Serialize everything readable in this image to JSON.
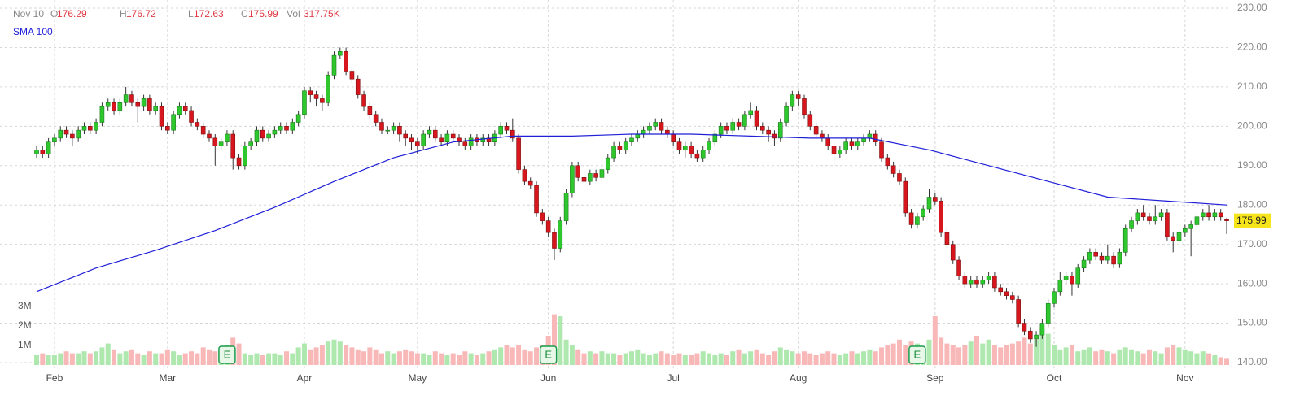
{
  "header": {
    "date": "Nov 10",
    "labels": [
      "O",
      "H",
      "L",
      "C",
      "Vol"
    ],
    "volume_text": "317.75K"
  },
  "chart_data": {
    "type": "candlestick",
    "open": [
      193,
      194,
      193,
      196,
      197,
      199,
      198,
      197,
      199,
      200,
      199,
      201,
      205,
      206,
      204,
      206,
      208,
      206,
      205,
      207,
      204,
      205,
      200,
      199,
      203,
      205,
      204,
      201,
      200,
      198,
      197,
      195,
      196,
      198,
      192,
      190,
      195,
      196,
      199,
      197,
      198,
      199,
      200,
      199,
      201,
      203,
      209,
      208,
      207,
      206,
      213,
      218,
      219,
      214,
      212,
      208,
      205,
      203,
      201,
      199,
      199,
      200,
      198,
      197,
      196,
      195,
      198,
      199,
      197,
      196,
      198,
      197,
      196,
      195,
      197,
      196,
      197,
      196,
      198,
      200,
      199,
      197,
      189,
      186,
      185,
      178,
      176,
      173,
      169,
      176,
      183,
      190,
      187,
      186,
      188,
      187,
      189,
      192,
      195,
      194,
      196,
      197,
      198,
      199,
      200,
      201,
      199,
      198,
      196,
      194,
      195,
      193,
      192,
      194,
      196,
      198,
      200,
      199,
      201,
      200,
      203,
      204,
      200,
      199,
      198,
      197,
      201,
      205,
      208,
      207,
      203,
      200,
      198,
      197,
      195,
      193,
      194,
      196,
      195,
      196,
      197,
      198,
      196,
      192,
      190,
      188,
      186,
      178,
      175,
      177,
      179,
      182,
      181,
      173,
      170,
      166,
      162,
      160,
      161,
      160,
      161,
      162,
      159,
      158,
      157,
      156,
      150,
      148,
      146,
      147,
      150,
      155,
      158,
      161,
      162,
      160,
      164,
      166,
      168,
      167,
      166,
      167,
      165,
      168,
      174,
      176,
      178,
      177,
      176,
      177,
      178,
      172,
      171,
      173,
      174,
      175,
      177,
      178,
      177,
      178,
      176.29
    ],
    "high": [
      195,
      195,
      197,
      198,
      200,
      200,
      199,
      200,
      201,
      201,
      202,
      206,
      207,
      207,
      207,
      210,
      209,
      207,
      208,
      208,
      206,
      206,
      201,
      204,
      206,
      206,
      205,
      202,
      201,
      199,
      198,
      197,
      199,
      199,
      193,
      196,
      197,
      200,
      200,
      199,
      200,
      201,
      201,
      202,
      204,
      210,
      210,
      209,
      208,
      214,
      219,
      220,
      220,
      215,
      213,
      209,
      206,
      204,
      202,
      200,
      201,
      201,
      199,
      198,
      197,
      199,
      200,
      200,
      198,
      199,
      199,
      198,
      197,
      198,
      198,
      198,
      198,
      199,
      201,
      201,
      202,
      198,
      190,
      187,
      186,
      179,
      177,
      174,
      177,
      184,
      191,
      191,
      188,
      189,
      189,
      190,
      193,
      196,
      196,
      197,
      198,
      199,
      200,
      201,
      202,
      202,
      200,
      199,
      197,
      196,
      196,
      194,
      195,
      197,
      199,
      201,
      201,
      202,
      202,
      204,
      206,
      205,
      201,
      200,
      199,
      202,
      206,
      209,
      209,
      208,
      204,
      201,
      199,
      198,
      196,
      195,
      197,
      197,
      197,
      198,
      199,
      199,
      197,
      193,
      191,
      189,
      187,
      179,
      178,
      180,
      184,
      183,
      182,
      174,
      171,
      167,
      163,
      162,
      162,
      162,
      163,
      163,
      160,
      159,
      158,
      157,
      151,
      149,
      148,
      151,
      156,
      159,
      163,
      163,
      163,
      165,
      167,
      169,
      169,
      168,
      170,
      168,
      169,
      175,
      177,
      179,
      180,
      178,
      180,
      179,
      179,
      173,
      174,
      175,
      176,
      178,
      179,
      180,
      179,
      179,
      176.72
    ],
    "low": [
      192,
      192,
      192,
      195,
      196,
      197,
      195,
      196,
      198,
      198,
      198,
      200,
      204,
      203,
      203,
      205,
      205,
      201,
      204,
      203,
      203,
      199,
      198,
      198,
      202,
      203,
      200,
      199,
      197,
      196,
      190,
      194,
      195,
      189,
      189,
      189,
      194,
      195,
      196,
      196,
      197,
      198,
      198,
      198,
      200,
      202,
      206,
      205,
      204,
      205,
      212,
      217,
      213,
      211,
      207,
      204,
      202,
      200,
      198,
      198,
      198,
      196,
      195,
      194,
      193,
      194,
      197,
      196,
      195,
      195,
      196,
      195,
      194,
      194,
      195,
      195,
      195,
      195,
      197,
      198,
      196,
      188,
      185,
      184,
      177,
      175,
      172,
      166,
      168,
      175,
      182,
      186,
      185,
      185,
      186,
      186,
      188,
      191,
      193,
      193,
      195,
      196,
      197,
      198,
      199,
      198,
      197,
      195,
      193,
      192,
      192,
      191,
      191,
      193,
      195,
      197,
      198,
      198,
      199,
      199,
      202,
      199,
      198,
      196,
      195,
      196,
      200,
      204,
      205,
      202,
      199,
      197,
      196,
      194,
      190,
      192,
      193,
      194,
      194,
      195,
      196,
      195,
      191,
      189,
      187,
      185,
      177,
      174,
      174,
      176,
      178,
      180,
      172,
      169,
      165,
      161,
      159,
      159,
      159,
      159,
      160,
      158,
      157,
      156,
      155,
      149,
      147,
      145,
      144,
      146,
      149,
      154,
      157,
      160,
      157,
      159,
      163,
      165,
      166,
      165,
      165,
      164,
      164,
      167,
      173,
      175,
      176,
      175,
      175,
      176,
      171,
      168,
      169,
      172,
      167,
      174,
      176,
      176,
      176,
      176,
      172.63
    ],
    "close": [
      194,
      193,
      196,
      197,
      199,
      198,
      197,
      199,
      200,
      199,
      201,
      205,
      206,
      204,
      206,
      208,
      206,
      205,
      207,
      204,
      205,
      200,
      199,
      203,
      205,
      204,
      201,
      200,
      198,
      197,
      195,
      196,
      198,
      192,
      190,
      195,
      196,
      199,
      197,
      198,
      199,
      200,
      199,
      201,
      203,
      209,
      208,
      207,
      206,
      213,
      218,
      219,
      214,
      212,
      208,
      205,
      203,
      201,
      199,
      199,
      200,
      198,
      197,
      196,
      195,
      198,
      199,
      197,
      196,
      198,
      197,
      196,
      195,
      197,
      196,
      197,
      196,
      198,
      200,
      199,
      197,
      189,
      186,
      185,
      178,
      176,
      173,
      169,
      176,
      183,
      190,
      187,
      186,
      188,
      187,
      189,
      192,
      195,
      194,
      196,
      197,
      198,
      199,
      200,
      201,
      199,
      198,
      196,
      194,
      195,
      193,
      192,
      194,
      196,
      198,
      200,
      199,
      201,
      200,
      203,
      204,
      200,
      199,
      198,
      197,
      201,
      205,
      208,
      207,
      203,
      200,
      198,
      197,
      195,
      193,
      194,
      196,
      195,
      196,
      197,
      198,
      196,
      192,
      190,
      188,
      186,
      178,
      175,
      177,
      179,
      182,
      181,
      173,
      170,
      166,
      162,
      160,
      161,
      160,
      161,
      162,
      159,
      158,
      157,
      156,
      150,
      148,
      146,
      147,
      150,
      155,
      158,
      161,
      162,
      160,
      164,
      166,
      168,
      167,
      166,
      167,
      165,
      168,
      174,
      176,
      178,
      177,
      176,
      177,
      178,
      172,
      171,
      173,
      174,
      175,
      177,
      178,
      177,
      178,
      177,
      175.99
    ],
    "volume": [
      0.5,
      0.6,
      0.5,
      0.5,
      0.6,
      0.7,
      0.6,
      0.6,
      0.7,
      0.6,
      0.7,
      0.9,
      1.1,
      0.8,
      0.6,
      0.7,
      0.8,
      0.6,
      0.5,
      0.7,
      0.6,
      0.6,
      0.8,
      0.7,
      0.5,
      0.6,
      0.7,
      0.6,
      0.9,
      0.8,
      0.7,
      0.6,
      1.0,
      1.4,
      1.1,
      0.6,
      0.5,
      0.6,
      0.5,
      0.6,
      0.6,
      0.5,
      0.7,
      0.6,
      0.9,
      1.1,
      0.8,
      0.9,
      1.0,
      1.2,
      1.3,
      1.2,
      1.0,
      0.9,
      0.8,
      0.7,
      0.9,
      0.8,
      0.6,
      0.7,
      0.6,
      0.7,
      0.8,
      0.7,
      0.6,
      0.6,
      0.5,
      0.7,
      0.6,
      0.5,
      0.6,
      0.5,
      0.7,
      0.6,
      0.5,
      0.6,
      0.7,
      0.8,
      0.9,
      1.0,
      0.9,
      1.0,
      0.8,
      0.7,
      0.9,
      1.0,
      1.5,
      2.6,
      2.5,
      1.3,
      1.0,
      0.8,
      0.6,
      0.7,
      0.6,
      0.7,
      0.6,
      0.6,
      0.5,
      0.6,
      0.7,
      0.8,
      0.6,
      0.5,
      0.6,
      0.7,
      0.6,
      0.5,
      0.6,
      0.5,
      0.5,
      0.6,
      0.7,
      0.6,
      0.5,
      0.6,
      0.5,
      0.7,
      0.8,
      0.6,
      0.7,
      0.8,
      0.6,
      0.5,
      0.7,
      0.9,
      0.8,
      0.7,
      0.6,
      0.7,
      0.6,
      0.5,
      0.6,
      0.7,
      0.6,
      0.5,
      0.6,
      0.7,
      0.6,
      0.7,
      0.8,
      0.7,
      0.9,
      1.0,
      1.1,
      1.3,
      1.0,
      1.2,
      1.1,
      0.9,
      1.3,
      2.5,
      1.4,
      1.1,
      1.0,
      0.9,
      1.0,
      1.2,
      1.5,
      1.1,
      1.3,
      1.0,
      0.9,
      1.0,
      1.1,
      1.2,
      1.4,
      1.1,
      1.3,
      1.9,
      1.6,
      1.0,
      0.8,
      0.9,
      1.0,
      0.7,
      0.8,
      0.9,
      0.7,
      0.8,
      0.7,
      0.6,
      0.8,
      0.9,
      0.8,
      0.7,
      0.6,
      0.8,
      0.7,
      0.6,
      0.9,
      1.0,
      0.9,
      0.8,
      0.7,
      0.6,
      0.7,
      0.6,
      0.5,
      0.4,
      0.31775
    ],
    "up_color": "#2ec82e",
    "down_color": "#d8161e",
    "up_volume_color": "#aee8ae",
    "down_volume_color": "#f8b8b8",
    "series": [
      {
        "name": "SMA 100",
        "color": "#1f1fd8",
        "x": [
          0,
          10,
          20,
          30,
          40,
          50,
          60,
          70,
          80,
          90,
          100,
          110,
          120,
          130,
          140,
          150,
          160,
          170,
          180,
          190,
          200
        ],
        "values": [
          158,
          164,
          168.5,
          173.5,
          179.4,
          186,
          192,
          196,
          197.5,
          197.5,
          198,
          198,
          197.5,
          197,
          197,
          194,
          190,
          186,
          182,
          181,
          180
        ]
      }
    ],
    "events": [
      {
        "index": 32,
        "label": "E"
      },
      {
        "index": 86,
        "label": "E"
      },
      {
        "index": 148,
        "label": "E"
      }
    ],
    "xticks": [
      {
        "value": 3,
        "label": "Feb"
      },
      {
        "value": 22,
        "label": "Mar"
      },
      {
        "value": 45,
        "label": "Apr"
      },
      {
        "value": 64,
        "label": "May"
      },
      {
        "value": 86,
        "label": "Jun"
      },
      {
        "value": 107,
        "label": "Jul"
      },
      {
        "value": 128,
        "label": "Aug"
      },
      {
        "value": 151,
        "label": "Sep"
      },
      {
        "value": 171,
        "label": "Oct"
      },
      {
        "value": 193,
        "label": "Nov"
      }
    ],
    "ylim": [
      140,
      230
    ],
    "yticks": [
      {
        "value": 140,
        "label": "140.00"
      },
      {
        "value": 150,
        "label": "150.00"
      },
      {
        "value": 160,
        "label": "160.00"
      },
      {
        "value": 170,
        "label": "170.00"
      },
      {
        "value": 180,
        "label": "180.00"
      },
      {
        "value": 190,
        "label": "190.00"
      },
      {
        "value": 200,
        "label": "200.00"
      },
      {
        "value": 210,
        "label": "210.00"
      },
      {
        "value": 220,
        "label": "220.00"
      },
      {
        "value": 230,
        "label": "230.00"
      }
    ],
    "volume_ticks": [
      {
        "value": 1,
        "label": "1M"
      },
      {
        "value": 2,
        "label": "2M"
      },
      {
        "value": 3,
        "label": "3M"
      }
    ],
    "grid": true
  }
}
